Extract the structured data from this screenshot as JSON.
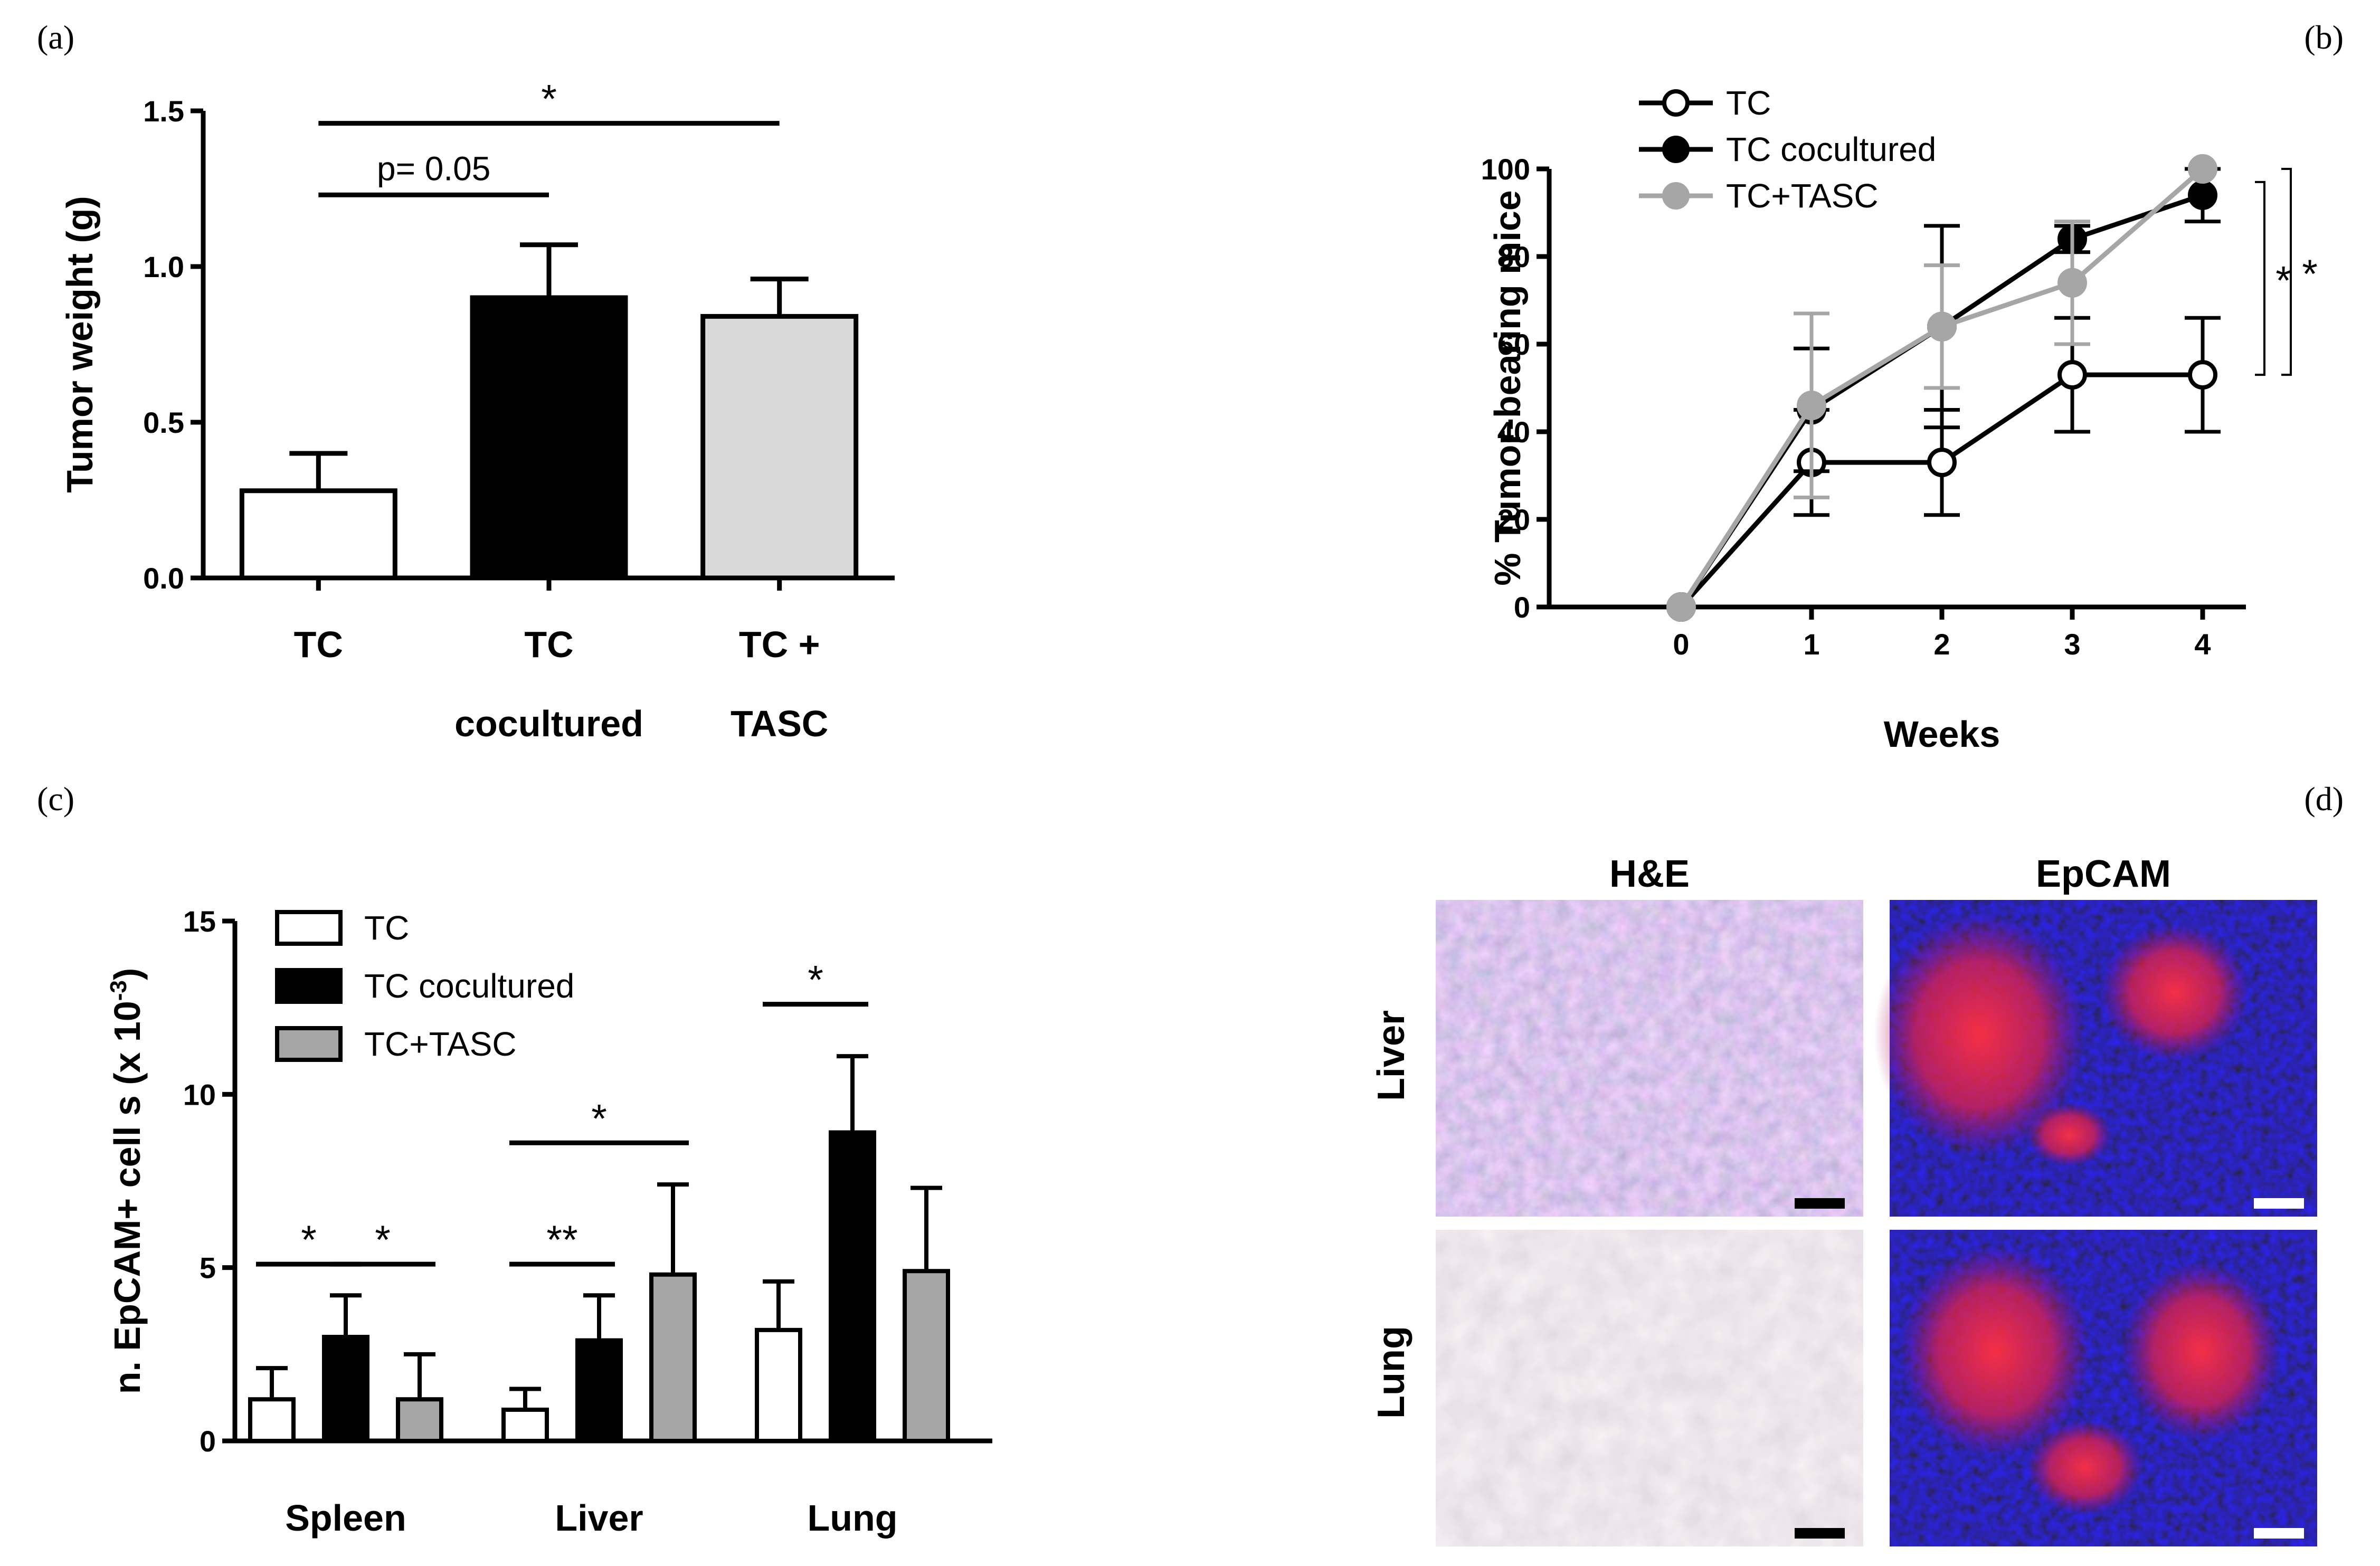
{
  "panels": {
    "a": {
      "label": "(a)"
    },
    "b": {
      "label": "(b)"
    },
    "c": {
      "label": "(c)"
    },
    "d": {
      "label": "(d)"
    }
  },
  "chart_data": [
    {
      "id": "a",
      "type": "bar",
      "ylabel": "Tumor weight (g)",
      "ylim": [
        0,
        1.5
      ],
      "yticks": [
        "0.0",
        "0.5",
        "1.0",
        "1.5"
      ],
      "categories": [
        [
          "TC"
        ],
        [
          "TC",
          "cocultured"
        ],
        [
          "TC +",
          "TASC"
        ]
      ],
      "values": [
        0.28,
        0.9,
        0.84
      ],
      "errors": [
        0.12,
        0.17,
        0.12
      ],
      "colors": [
        "#ffffff",
        "#000000",
        "#d9d9d9"
      ],
      "annotations": [
        {
          "from": 0,
          "to": 1,
          "text": "p= 0.05",
          "y": 1.23
        },
        {
          "from": 0,
          "to": 2,
          "text": "*",
          "y": 1.46
        }
      ]
    },
    {
      "id": "b",
      "type": "line",
      "xlabel": "Weeks",
      "ylabel": "% Tumor-bearing mice",
      "x": [
        0,
        1,
        2,
        3,
        4
      ],
      "xticks": [
        "0",
        "1",
        "2",
        "3",
        "4"
      ],
      "ylim": [
        0,
        100
      ],
      "yticks": [
        "0",
        "20",
        "40",
        "60",
        "80",
        "100"
      ],
      "legend_position": "top-left",
      "series": [
        {
          "name": "TC",
          "marker": "open",
          "color": "#000000",
          "values": [
            0,
            33,
            33,
            53,
            53
          ],
          "errors": [
            0,
            12,
            12,
            13,
            13
          ]
        },
        {
          "name": "TC cocultured",
          "marker": "filled",
          "color": "#000000",
          "values": [
            0,
            45,
            64,
            84,
            94
          ],
          "errors": [
            0,
            14,
            23,
            3,
            6
          ]
        },
        {
          "name": "TC+TASC",
          "marker": "filled",
          "color": "#a6a6a6",
          "values": [
            0,
            46,
            64,
            74,
            100
          ],
          "errors": [
            0,
            21,
            14,
            14,
            0
          ]
        }
      ],
      "brackets": [
        {
          "text": "*",
          "y_top": 97,
          "y_bottom": 53
        },
        {
          "text": "*",
          "y_top": 100,
          "y_bottom": 53
        }
      ]
    },
    {
      "id": "c",
      "type": "bar",
      "ylabel_main": "n. EpCAM+ cell s (x 10",
      "ylabel_exp": "-3",
      "ylabel_close": ")",
      "ylim": [
        0,
        15
      ],
      "yticks": [
        "0",
        "5",
        "10",
        "15"
      ],
      "categories": [
        "Spleen",
        "Liver",
        "Lung"
      ],
      "legend_position": "top-left",
      "series": [
        {
          "name": "TC",
          "color": "#ffffff",
          "values": [
            1.2,
            0.9,
            3.2
          ],
          "errors": [
            0.9,
            0.6,
            1.4
          ]
        },
        {
          "name": "TC cocultured",
          "color": "#000000",
          "values": [
            3.0,
            2.9,
            8.9
          ],
          "errors": [
            1.2,
            1.3,
            2.2
          ]
        },
        {
          "name": "TC+TASC",
          "color": "#a6a6a6",
          "values": [
            1.2,
            4.8,
            4.9
          ],
          "errors": [
            1.3,
            2.6,
            2.4
          ]
        }
      ],
      "annotations": [
        {
          "group": 0,
          "from": 0,
          "to": 1,
          "text": "*",
          "y": 5.1
        },
        {
          "group": 0,
          "from": 1,
          "to": 2,
          "text": "*",
          "y": 5.1
        },
        {
          "group": 1,
          "from": 0,
          "to": 1,
          "text": "**",
          "y": 5.1
        },
        {
          "group": 1,
          "from": 0,
          "to": 2,
          "text": "*",
          "y": 8.6
        },
        {
          "group": 2,
          "from": 0,
          "to": 1,
          "text": "*",
          "y": 12.6
        }
      ]
    }
  ],
  "micrographs": {
    "columns": [
      "H&E",
      "EpCAM"
    ],
    "rows": [
      "Liver",
      "Lung"
    ]
  }
}
